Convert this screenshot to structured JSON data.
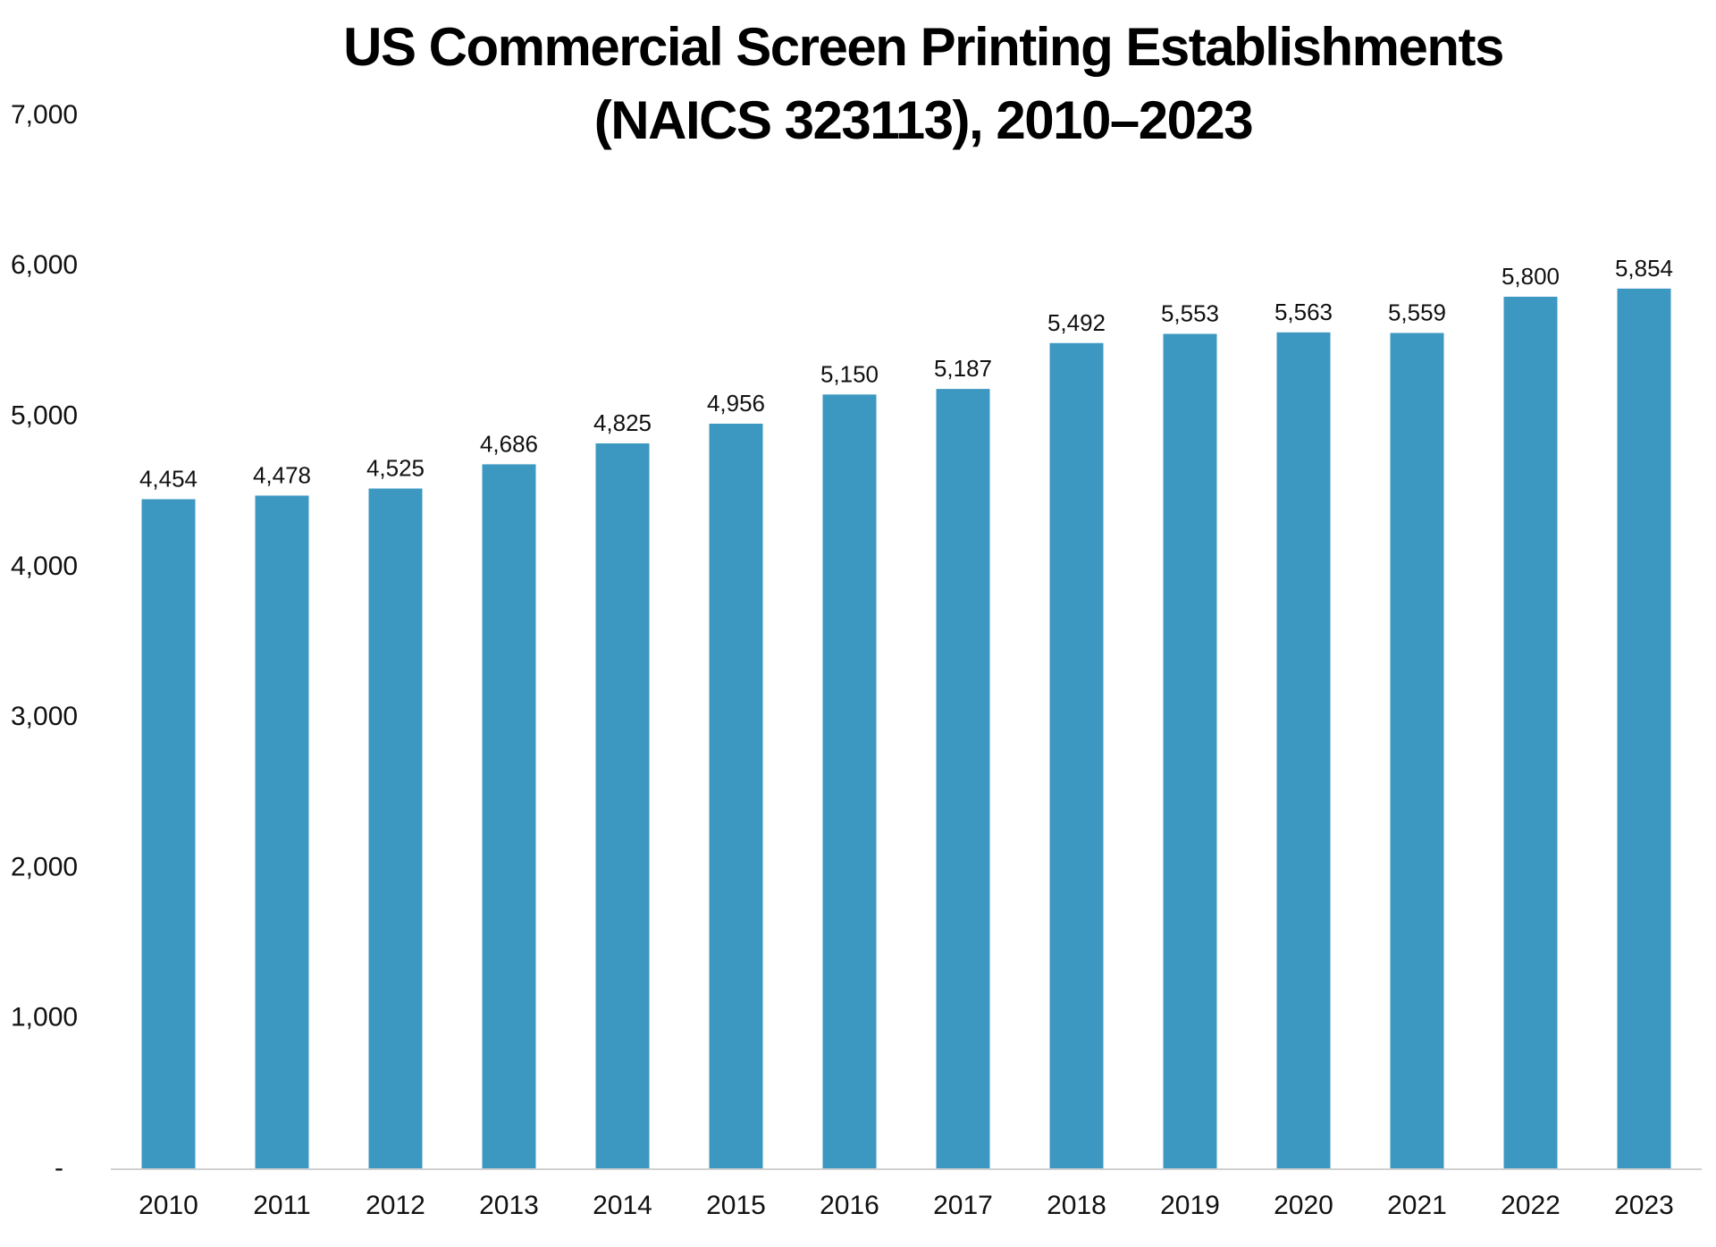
{
  "chart_data": {
    "type": "bar",
    "title": "US Commercial Screen Printing Establishments (NAICS 323113), 2010–2023",
    "title_lines": [
      "US Commercial Screen Printing Establishments",
      "(NAICS 323113), 2010–2023"
    ],
    "xlabel": "",
    "ylabel": "",
    "categories": [
      "2010",
      "2011",
      "2012",
      "2013",
      "2014",
      "2015",
      "2016",
      "2017",
      "2018",
      "2019",
      "2020",
      "2021",
      "2022",
      "2023"
    ],
    "values": [
      4454,
      4478,
      4525,
      4686,
      4825,
      4956,
      5150,
      5187,
      5492,
      5553,
      5563,
      5559,
      5800,
      5854
    ],
    "data_labels": [
      "4,454",
      "4,478",
      "4,525",
      "4,686",
      "4,825",
      "4,956",
      "5,150",
      "5,187",
      "5,492",
      "5,553",
      "5,563",
      "5,559",
      "5,800",
      "5,854"
    ],
    "ylim": [
      0,
      7000
    ],
    "y_ticks": [
      0,
      1000,
      2000,
      3000,
      4000,
      5000,
      6000,
      7000
    ],
    "y_tick_labels": [
      "-",
      "1,000",
      "2,000",
      "3,000",
      "4,000",
      "5,000",
      "6,000",
      "7,000"
    ],
    "grid": false,
    "legend": "none",
    "bar_color": "#3d98c1",
    "axis_color": "#d0d0d0"
  }
}
